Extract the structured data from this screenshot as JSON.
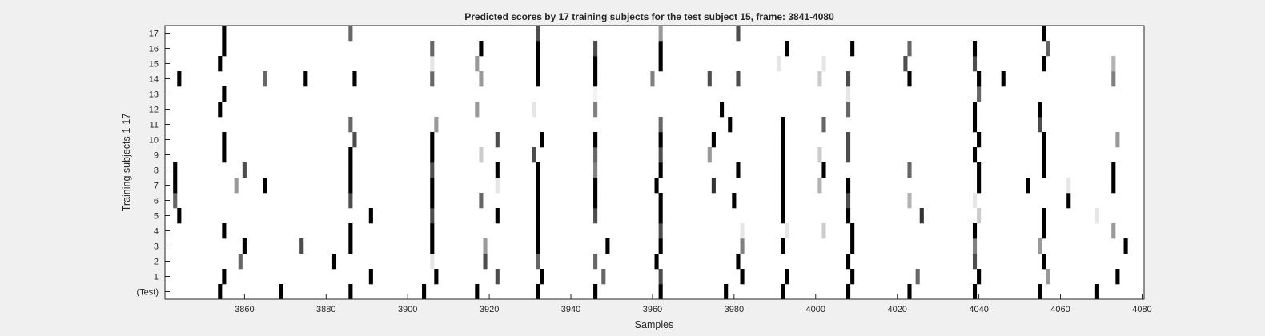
{
  "chart_data": {
    "type": "heatmap",
    "title": "Predicted scores by 17 training subjects for the test subject 15, frame: 3841-4080",
    "xlabel": "Samples",
    "ylabel": "Training subjects 1-17",
    "xlim": [
      3841,
      4080
    ],
    "xticks": [
      3860,
      3880,
      3900,
      3920,
      3940,
      3960,
      3980,
      4000,
      4020,
      4040,
      4060,
      4080
    ],
    "ylim": [
      0,
      17
    ],
    "rows": [
      "(Test)",
      "1",
      "2",
      "3",
      "4",
      "5",
      "6",
      "7",
      "8",
      "9",
      "10",
      "11",
      "12",
      "13",
      "14",
      "15",
      "16",
      "17"
    ],
    "colormap": "gray (0 = black, 1 = white)",
    "background_value": 1.0,
    "grid": false,
    "legend": "none",
    "series": [
      {
        "row": "(Test)",
        "marks": [
          {
            "x": 3854,
            "v": 0.0
          },
          {
            "x": 3869,
            "v": 0.0
          },
          {
            "x": 3886,
            "v": 0.0
          },
          {
            "x": 3904,
            "v": 0.0
          },
          {
            "x": 3917,
            "v": 0.0
          },
          {
            "x": 3932,
            "v": 0.0
          },
          {
            "x": 3946,
            "v": 0.0
          },
          {
            "x": 3962,
            "v": 0.0
          },
          {
            "x": 3978,
            "v": 0.0
          },
          {
            "x": 3992,
            "v": 0.0
          },
          {
            "x": 4008,
            "v": 0.0
          },
          {
            "x": 4023,
            "v": 0.0
          },
          {
            "x": 4039,
            "v": 0.0
          },
          {
            "x": 4055,
            "v": 0.0
          },
          {
            "x": 4069,
            "v": 0.0
          }
        ]
      },
      {
        "row": "1",
        "marks": [
          {
            "x": 3855,
            "v": 0.0
          },
          {
            "x": 3891,
            "v": 0.0
          },
          {
            "x": 3907,
            "v": 0.0
          },
          {
            "x": 3922,
            "v": 0.3
          },
          {
            "x": 3933,
            "v": 0.0
          },
          {
            "x": 3948,
            "v": 0.4
          },
          {
            "x": 3962,
            "v": 0.3
          },
          {
            "x": 3982,
            "v": 0.0
          },
          {
            "x": 3993,
            "v": 0.0
          },
          {
            "x": 4009,
            "v": 0.0
          },
          {
            "x": 4025,
            "v": 0.4
          },
          {
            "x": 4040,
            "v": 0.0
          },
          {
            "x": 4057,
            "v": 0.6
          },
          {
            "x": 4074,
            "v": 0.0
          }
        ]
      },
      {
        "row": "2",
        "marks": [
          {
            "x": 3859,
            "v": 0.4
          },
          {
            "x": 3882,
            "v": 0.0
          },
          {
            "x": 3906,
            "v": 0.9
          },
          {
            "x": 3919,
            "v": 0.3
          },
          {
            "x": 3932,
            "v": 0.4
          },
          {
            "x": 3946,
            "v": 0.4
          },
          {
            "x": 3961,
            "v": 0.0
          },
          {
            "x": 3981,
            "v": 0.0
          },
          {
            "x": 4008,
            "v": 0.0
          },
          {
            "x": 4039,
            "v": 0.3
          },
          {
            "x": 4056,
            "v": 0.0
          }
        ]
      },
      {
        "row": "3",
        "marks": [
          {
            "x": 3860,
            "v": 0.0
          },
          {
            "x": 3874,
            "v": 0.3
          },
          {
            "x": 3886,
            "v": 0.0
          },
          {
            "x": 3906,
            "v": 0.0
          },
          {
            "x": 3919,
            "v": 0.6
          },
          {
            "x": 3932,
            "v": 0.0
          },
          {
            "x": 3949,
            "v": 0.0
          },
          {
            "x": 3962,
            "v": 0.0
          },
          {
            "x": 3982,
            "v": 0.5
          },
          {
            "x": 3992,
            "v": 0.0
          },
          {
            "x": 4009,
            "v": 0.0
          },
          {
            "x": 4039,
            "v": 0.5
          },
          {
            "x": 4055,
            "v": 0.6
          },
          {
            "x": 4076,
            "v": 0.0
          }
        ]
      },
      {
        "row": "4",
        "marks": [
          {
            "x": 3855,
            "v": 0.0
          },
          {
            "x": 3886,
            "v": 0.0
          },
          {
            "x": 3906,
            "v": 0.0
          },
          {
            "x": 3932,
            "v": 0.0
          },
          {
            "x": 3962,
            "v": 0.3
          },
          {
            "x": 3982,
            "v": 0.9
          },
          {
            "x": 3993,
            "v": 0.9
          },
          {
            "x": 4002,
            "v": 0.8
          },
          {
            "x": 4009,
            "v": 0.0
          },
          {
            "x": 4039,
            "v": 0.0
          },
          {
            "x": 4056,
            "v": 0.0
          },
          {
            "x": 4073,
            "v": 0.6
          }
        ]
      },
      {
        "row": "5",
        "marks": [
          {
            "x": 3844,
            "v": 0.0
          },
          {
            "x": 3891,
            "v": 0.0
          },
          {
            "x": 3906,
            "v": 0.3
          },
          {
            "x": 3922,
            "v": 0.0
          },
          {
            "x": 3932,
            "v": 0.0
          },
          {
            "x": 3946,
            "v": 0.3
          },
          {
            "x": 3962,
            "v": 0.0
          },
          {
            "x": 3992,
            "v": 0.0
          },
          {
            "x": 4008,
            "v": 0.0
          },
          {
            "x": 4026,
            "v": 0.2
          },
          {
            "x": 4040,
            "v": 0.8
          },
          {
            "x": 4056,
            "v": 0.0
          },
          {
            "x": 4069,
            "v": 0.9
          }
        ]
      },
      {
        "row": "6",
        "marks": [
          {
            "x": 3843,
            "v": 0.4
          },
          {
            "x": 3886,
            "v": 0.3
          },
          {
            "x": 3906,
            "v": 0.0
          },
          {
            "x": 3918,
            "v": 0.4
          },
          {
            "x": 3932,
            "v": 0.0
          },
          {
            "x": 3946,
            "v": 0.0
          },
          {
            "x": 3962,
            "v": 0.0
          },
          {
            "x": 3980,
            "v": 0.0
          },
          {
            "x": 3992,
            "v": 0.0
          },
          {
            "x": 4008,
            "v": 0.3
          },
          {
            "x": 4023,
            "v": 0.7
          },
          {
            "x": 4039,
            "v": 0.9
          },
          {
            "x": 4062,
            "v": 0.0
          }
        ]
      },
      {
        "row": "7",
        "marks": [
          {
            "x": 3843,
            "v": 0.0
          },
          {
            "x": 3858,
            "v": 0.6
          },
          {
            "x": 3865,
            "v": 0.0
          },
          {
            "x": 3886,
            "v": 0.0
          },
          {
            "x": 3906,
            "v": 0.0
          },
          {
            "x": 3922,
            "v": 0.9
          },
          {
            "x": 3932,
            "v": 0.0
          },
          {
            "x": 3946,
            "v": 0.0
          },
          {
            "x": 3961,
            "v": 0.0
          },
          {
            "x": 3975,
            "v": 0.2
          },
          {
            "x": 3992,
            "v": 0.0
          },
          {
            "x": 4001,
            "v": 0.7
          },
          {
            "x": 4008,
            "v": 0.0
          },
          {
            "x": 4040,
            "v": 0.0
          },
          {
            "x": 4052,
            "v": 0.0
          },
          {
            "x": 4062,
            "v": 0.9
          },
          {
            "x": 4073,
            "v": 0.0
          }
        ]
      },
      {
        "row": "8",
        "marks": [
          {
            "x": 3843,
            "v": 0.0
          },
          {
            "x": 3860,
            "v": 0.3
          },
          {
            "x": 3886,
            "v": 0.0
          },
          {
            "x": 3906,
            "v": 0.3
          },
          {
            "x": 3922,
            "v": 0.0
          },
          {
            "x": 3932,
            "v": 0.0
          },
          {
            "x": 3946,
            "v": 0.5
          },
          {
            "x": 3962,
            "v": 0.0
          },
          {
            "x": 3981,
            "v": 0.0
          },
          {
            "x": 3992,
            "v": 0.0
          },
          {
            "x": 4002,
            "v": 0.0
          },
          {
            "x": 4023,
            "v": 0.4
          },
          {
            "x": 4040,
            "v": 0.0
          },
          {
            "x": 4056,
            "v": 0.0
          },
          {
            "x": 4073,
            "v": 0.0
          }
        ]
      },
      {
        "row": "9",
        "marks": [
          {
            "x": 3855,
            "v": 0.0
          },
          {
            "x": 3886,
            "v": 0.0
          },
          {
            "x": 3906,
            "v": 0.0
          },
          {
            "x": 3918,
            "v": 0.8
          },
          {
            "x": 3931,
            "v": 0.3
          },
          {
            "x": 3946,
            "v": 0.4
          },
          {
            "x": 3962,
            "v": 0.3
          },
          {
            "x": 3974,
            "v": 0.6
          },
          {
            "x": 3992,
            "v": 0.0
          },
          {
            "x": 4001,
            "v": 0.8
          },
          {
            "x": 4008,
            "v": 0.3
          },
          {
            "x": 4039,
            "v": 0.0
          },
          {
            "x": 4056,
            "v": 0.0
          }
        ]
      },
      {
        "row": "10",
        "marks": [
          {
            "x": 3855,
            "v": 0.0
          },
          {
            "x": 3887,
            "v": 0.3
          },
          {
            "x": 3906,
            "v": 0.0
          },
          {
            "x": 3922,
            "v": 0.3
          },
          {
            "x": 3933,
            "v": 0.0
          },
          {
            "x": 3946,
            "v": 0.0
          },
          {
            "x": 3962,
            "v": 0.0
          },
          {
            "x": 3975,
            "v": 0.0
          },
          {
            "x": 3992,
            "v": 0.0
          },
          {
            "x": 4008,
            "v": 0.3
          },
          {
            "x": 4040,
            "v": 0.0
          },
          {
            "x": 4056,
            "v": 0.0
          },
          {
            "x": 4074,
            "v": 0.6
          }
        ]
      },
      {
        "row": "11",
        "marks": [
          {
            "x": 3886,
            "v": 0.4
          },
          {
            "x": 3907,
            "v": 0.6
          },
          {
            "x": 3962,
            "v": 0.4
          },
          {
            "x": 3979,
            "v": 0.0
          },
          {
            "x": 3992,
            "v": 0.0
          },
          {
            "x": 4002,
            "v": 0.4
          },
          {
            "x": 4039,
            "v": 0.0
          },
          {
            "x": 4055,
            "v": 0.3
          }
        ]
      },
      {
        "row": "12",
        "marks": [
          {
            "x": 3854,
            "v": 0.0
          },
          {
            "x": 3917,
            "v": 0.6
          },
          {
            "x": 3931,
            "v": 0.9
          },
          {
            "x": 3946,
            "v": 0.5
          },
          {
            "x": 3977,
            "v": 0.0
          },
          {
            "x": 4008,
            "v": 0.4
          },
          {
            "x": 4039,
            "v": 0.0
          },
          {
            "x": 4055,
            "v": 0.0
          }
        ]
      },
      {
        "row": "13",
        "marks": [
          {
            "x": 3855,
            "v": 0.0
          },
          {
            "x": 3946,
            "v": 0.95
          },
          {
            "x": 4008,
            "v": 0.9
          },
          {
            "x": 4040,
            "v": 0.4
          }
        ]
      },
      {
        "row": "14",
        "marks": [
          {
            "x": 3844,
            "v": 0.0
          },
          {
            "x": 3865,
            "v": 0.4
          },
          {
            "x": 3875,
            "v": 0.0
          },
          {
            "x": 3887,
            "v": 0.0
          },
          {
            "x": 3906,
            "v": 0.4
          },
          {
            "x": 3918,
            "v": 0.6
          },
          {
            "x": 3932,
            "v": 0.0
          },
          {
            "x": 3946,
            "v": 0.0
          },
          {
            "x": 3960,
            "v": 0.5
          },
          {
            "x": 3974,
            "v": 0.3
          },
          {
            "x": 3981,
            "v": 0.3
          },
          {
            "x": 4001,
            "v": 0.8
          },
          {
            "x": 4008,
            "v": 0.3
          },
          {
            "x": 4023,
            "v": 0.0
          },
          {
            "x": 4040,
            "v": 0.0
          },
          {
            "x": 4046,
            "v": 0.0
          },
          {
            "x": 4073,
            "v": 0.5
          }
        ]
      },
      {
        "row": "15",
        "marks": [
          {
            "x": 3854,
            "v": 0.0
          },
          {
            "x": 3906,
            "v": 0.9
          },
          {
            "x": 3917,
            "v": 0.6
          },
          {
            "x": 3932,
            "v": 0.0
          },
          {
            "x": 3946,
            "v": 0.0
          },
          {
            "x": 3962,
            "v": 0.0
          },
          {
            "x": 3991,
            "v": 0.9
          },
          {
            "x": 4002,
            "v": 0.9
          },
          {
            "x": 4022,
            "v": 0.3
          },
          {
            "x": 4039,
            "v": 0.3
          },
          {
            "x": 4056,
            "v": 0.0
          },
          {
            "x": 4073,
            "v": 0.7
          }
        ]
      },
      {
        "row": "16",
        "marks": [
          {
            "x": 3855,
            "v": 0.0
          },
          {
            "x": 3906,
            "v": 0.4
          },
          {
            "x": 3918,
            "v": 0.0
          },
          {
            "x": 3932,
            "v": 0.0
          },
          {
            "x": 3946,
            "v": 0.3
          },
          {
            "x": 3962,
            "v": 0.0
          },
          {
            "x": 3993,
            "v": 0.0
          },
          {
            "x": 4009,
            "v": 0.0
          },
          {
            "x": 4023,
            "v": 0.4
          },
          {
            "x": 4039,
            "v": 0.0
          },
          {
            "x": 4057,
            "v": 0.4
          }
        ]
      },
      {
        "row": "17",
        "marks": [
          {
            "x": 3855,
            "v": 0.0
          },
          {
            "x": 3886,
            "v": 0.4
          },
          {
            "x": 3932,
            "v": 0.3
          },
          {
            "x": 3962,
            "v": 0.6
          },
          {
            "x": 3981,
            "v": 0.3
          },
          {
            "x": 4056,
            "v": 0.0
          }
        ]
      }
    ]
  }
}
